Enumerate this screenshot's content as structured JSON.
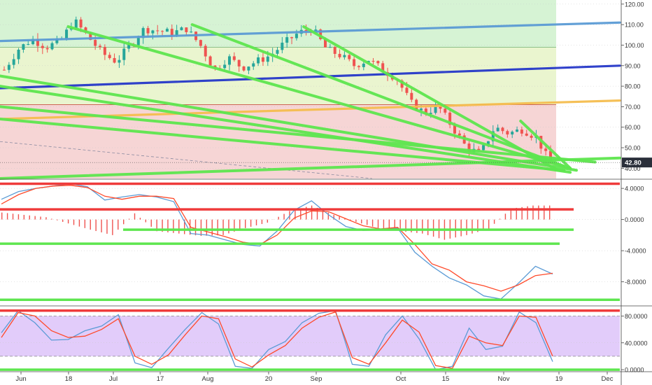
{
  "chart_data": [
    {
      "type": "candlestick",
      "panel": "price",
      "title": "",
      "ylim": [
        35,
        122
      ],
      "y_ticks": [
        40,
        50,
        60,
        70,
        80,
        90,
        100,
        110,
        120
      ],
      "y_tick_labels": [
        "40.00",
        "50.00",
        "60.00",
        "70.00",
        "80.00",
        "90.00",
        "100.00",
        "110.00",
        "120.00"
      ],
      "last_price": 42.8,
      "last_price_label": "42.80",
      "last_price_color": "#2a2f3a",
      "x_tick_labels": [
        "Jun",
        "18",
        "Jul",
        "17",
        "Aug",
        "20",
        "Sep",
        "Oct",
        "15",
        "Nov",
        "19",
        "Dec"
      ],
      "zones": [
        {
          "from": 99,
          "to": 122,
          "color": "#d6f3d4"
        },
        {
          "from": 71,
          "to": 99,
          "color": "#eaf5cf"
        },
        {
          "from": 35,
          "to": 71,
          "color": "#f6d5d5"
        }
      ],
      "close_path": [
        88,
        98,
        103,
        99,
        102,
        112,
        104,
        96,
        92,
        100,
        108,
        107,
        106,
        108,
        100,
        88,
        94,
        89,
        92,
        95,
        101,
        106,
        108,
        98,
        95,
        90,
        93,
        88,
        84,
        72,
        67,
        70,
        60,
        50,
        47,
        60,
        57,
        59,
        55,
        42
      ],
      "series_colors": {
        "up": "#26a69a",
        "down": "#ef5350"
      },
      "trendlines": [
        {
          "color": "#5b9bd5",
          "from": [
            0,
            102
          ],
          "to": [
            1,
            111
          ]
        },
        {
          "color": "#2638c9",
          "from": [
            0,
            79
          ],
          "to": [
            1,
            90
          ]
        },
        {
          "color": "#f5bd4f",
          "from": [
            0,
            64
          ],
          "to": [
            1,
            73
          ]
        },
        {
          "color": "#5ee64f",
          "from": [
            0.11,
            109
          ],
          "to": [
            0.92,
            40
          ]
        },
        {
          "color": "#5ee64f",
          "from": [
            0.31,
            110
          ],
          "to": [
            0.91,
            41
          ]
        },
        {
          "color": "#5ee64f",
          "from": [
            0.49,
            109
          ],
          "to": [
            0.9,
            39
          ]
        },
        {
          "color": "#5ee64f",
          "from": [
            0,
            85
          ],
          "to": [
            0.93,
            39
          ]
        },
        {
          "color": "#5ee64f",
          "from": [
            0,
            80
          ],
          "to": [
            0.92,
            38
          ]
        },
        {
          "color": "#5ee64f",
          "from": [
            0,
            70
          ],
          "to": [
            0.96,
            43
          ]
        },
        {
          "color": "#5ee64f",
          "from": [
            0,
            64
          ],
          "to": [
            0.91,
            39
          ]
        },
        {
          "color": "#5ee64f",
          "from": [
            0,
            35
          ],
          "to": [
            1,
            45
          ]
        },
        {
          "color": "#5ee64f",
          "from": [
            0.84,
            63
          ],
          "to": [
            0.92,
            40
          ]
        }
      ]
    },
    {
      "type": "line",
      "panel": "macd",
      "ylim": [
        -11,
        5
      ],
      "y_ticks": [
        4,
        0,
        -4,
        -8
      ],
      "y_tick_labels": [
        "4.0000",
        "0.0000",
        "-4.0000",
        "-8.0000"
      ],
      "series": [
        {
          "color": "#5b9bd5",
          "values": [
            2.6,
            3.6,
            4.0,
            4.3,
            4.6,
            4.2,
            2.5,
            2.9,
            3.2,
            2.9,
            2.3,
            -1.8,
            -2.0,
            -2.6,
            -3.2,
            -3.4,
            -1.5,
            1.2,
            2.4,
            0.6,
            -0.9,
            -1.4,
            -1.3,
            -1.1,
            -4.2,
            -6.0,
            -7.5,
            -8.4,
            -9.8,
            -10.2,
            -8.2,
            -6.0,
            -7.0
          ]
        },
        {
          "color": "#ff4a2a",
          "values": [
            2.0,
            3.2,
            4.0,
            4.3,
            4.4,
            4.1,
            3.0,
            2.6,
            3.0,
            3.0,
            2.7,
            -1.0,
            -1.6,
            -2.2,
            -2.9,
            -3.2,
            -2.0,
            0.2,
            1.1,
            1.0,
            0.1,
            -0.8,
            -1.2,
            -1.0,
            -3.2,
            -5.7,
            -6.5,
            -8.0,
            -8.5,
            -9.2,
            -8.4,
            -7.2,
            -6.9
          ]
        }
      ],
      "histogram": [
        0.9,
        0.6,
        0.3,
        -0.5,
        -1.3,
        -2.0,
        0.8,
        -1.5,
        -1.8,
        -2.1,
        -2.0,
        -1.1,
        -0.4,
        1.1,
        1.8,
        0.6,
        -0.3,
        -1.1,
        -1.5,
        -1.8,
        -2.6,
        -2.0,
        -1.2,
        1.4,
        1.8
      ],
      "hlines": [
        {
          "color": "#ef3b3b",
          "value": 4.6
        },
        {
          "color": "#ef3b3b",
          "value": 1.3
        },
        {
          "color": "#5ee64f",
          "value": -1.3
        },
        {
          "color": "#5ee64f",
          "value": -3.1
        },
        {
          "color": "#5ee64f",
          "value": -10.3
        }
      ]
    },
    {
      "type": "line",
      "panel": "stochastic",
      "ylim": [
        -2,
        94
      ],
      "y_ticks": [
        80,
        40,
        0
      ],
      "y_tick_labels": [
        "80.0000",
        "40.0000",
        "0.0000"
      ],
      "band": {
        "from": 20,
        "to": 80,
        "color": "#e2ccfa"
      },
      "series": [
        {
          "color": "#5b9bd5",
          "values": [
            55,
            88,
            70,
            44,
            45,
            58,
            65,
            82,
            10,
            3,
            32,
            60,
            85,
            68,
            5,
            2,
            30,
            42,
            70,
            84,
            88,
            8,
            5,
            52,
            80,
            46,
            0,
            5,
            62,
            30,
            35,
            86,
            70,
            12
          ]
        },
        {
          "color": "#ff4a2a",
          "values": [
            48,
            85,
            80,
            58,
            48,
            50,
            60,
            76,
            20,
            8,
            22,
            52,
            80,
            76,
            16,
            4,
            22,
            36,
            62,
            78,
            86,
            18,
            8,
            40,
            74,
            56,
            6,
            2,
            50,
            40,
            36,
            80,
            78,
            20
          ]
        },
        {
          "color": "#ef3b3b",
          "values": [
            88
          ]
        },
        {
          "color": "#5ee64f",
          "values": [
            0
          ]
        }
      ]
    }
  ]
}
